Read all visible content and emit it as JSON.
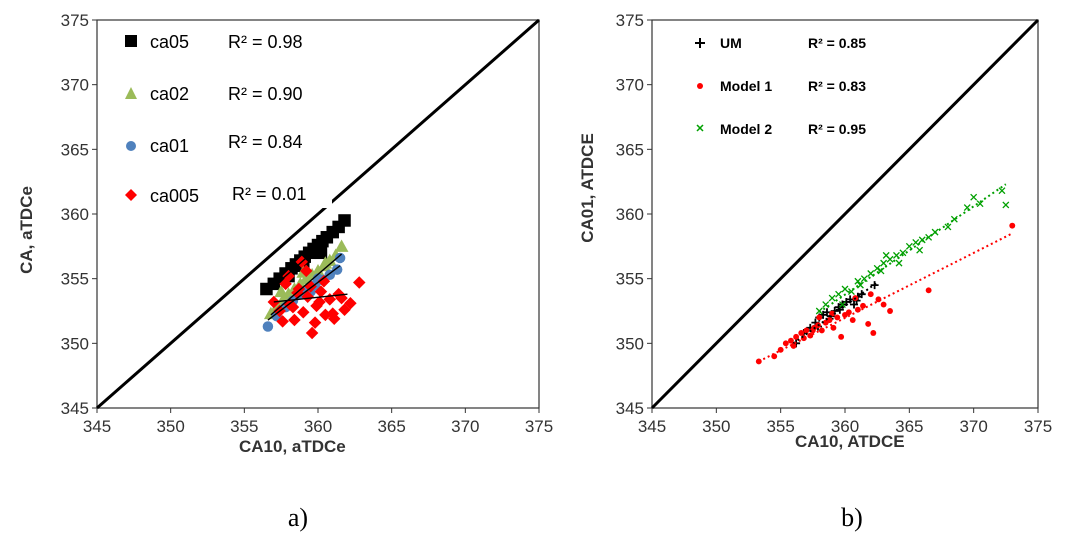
{
  "chart_data": [
    {
      "type": "scatter",
      "panel_label": "a)",
      "xlabel": "CA10,  aTDCe",
      "ylabel": "CA,  aTDCe",
      "xlim": [
        345,
        375
      ],
      "ylim": [
        345,
        375
      ],
      "xticks": [
        345,
        350,
        355,
        360,
        365,
        370,
        375
      ],
      "yticks": [
        345,
        350,
        355,
        360,
        365,
        370,
        375
      ],
      "tick_labels_x": [
        "345",
        "350",
        "355",
        "360",
        "365",
        "370",
        "375"
      ],
      "tick_labels_y": [
        "345",
        "350",
        "355",
        "360",
        "365",
        "370",
        "375"
      ],
      "grid": false,
      "legend_position": "top-left",
      "identity_line": true,
      "series": [
        {
          "name": "ca05",
          "marker": "square",
          "color": "#000000",
          "r2_label": "R² = 0.98",
          "x": [
            356.5,
            357.0,
            357.4,
            357.8,
            358.2,
            358.5,
            358.8,
            359.1,
            359.4,
            359.7,
            360.0,
            360.3,
            360.6,
            361.0,
            361.4,
            361.8,
            358.0,
            359.0,
            360.2
          ],
          "y": [
            354.2,
            354.6,
            355.0,
            355.4,
            355.8,
            356.1,
            356.4,
            356.7,
            357.0,
            357.3,
            357.6,
            357.9,
            358.2,
            358.6,
            359.0,
            359.5,
            355.2,
            356.0,
            357.0
          ]
        },
        {
          "name": "ca02",
          "marker": "triangle",
          "color": "#9BBB59",
          "r2_label": "R² = 0.90",
          "x": [
            356.8,
            357.2,
            357.6,
            358.0,
            358.4,
            358.8,
            359.2,
            359.6,
            360.0,
            360.4,
            360.8,
            361.2,
            361.6,
            357.5,
            359.0,
            360.5
          ],
          "y": [
            352.3,
            352.8,
            353.3,
            353.8,
            354.2,
            354.6,
            355.0,
            355.3,
            355.6,
            356.0,
            356.4,
            356.8,
            357.5,
            354.0,
            355.5,
            356.2
          ]
        },
        {
          "name": "ca01",
          "marker": "circle",
          "color": "#4F81BD",
          "r2_label": "R² = 0.84",
          "x": [
            356.6,
            357.2,
            357.8,
            358.3,
            358.8,
            359.3,
            359.8,
            360.3,
            360.8,
            361.3,
            361.5,
            358.0,
            359.5,
            360.0
          ],
          "y": [
            351.3,
            352.1,
            352.8,
            353.3,
            353.8,
            354.1,
            354.5,
            354.9,
            355.3,
            355.7,
            356.6,
            353.0,
            354.0,
            355.0
          ]
        },
        {
          "name": "ca005",
          "marker": "diamond",
          "color": "#FF0000",
          "r2_label": "R² = 0.01",
          "x": [
            357.0,
            357.4,
            357.8,
            358.1,
            358.4,
            358.7,
            359.0,
            359.3,
            359.6,
            359.9,
            360.2,
            360.5,
            360.8,
            361.1,
            361.4,
            361.8,
            362.2,
            362.8,
            358.0,
            358.6,
            359.2,
            359.8,
            360.4,
            361.0,
            357.6,
            358.9,
            360.1,
            361.6,
            359.5,
            358.3
          ],
          "y": [
            353.2,
            352.5,
            354.6,
            353.0,
            351.8,
            354.2,
            352.4,
            353.6,
            350.8,
            352.9,
            354.0,
            352.2,
            353.4,
            351.9,
            353.8,
            352.6,
            353.1,
            354.7,
            355.2,
            353.9,
            355.6,
            351.6,
            354.8,
            352.3,
            351.7,
            356.3,
            353.2,
            353.5,
            354.4,
            352.8
          ]
        }
      ],
      "trendlines": [
        {
          "series": "ca05",
          "x": [
            356.5,
            361.8
          ],
          "y": [
            353.9,
            359.2
          ]
        },
        {
          "series": "ca02",
          "x": [
            356.8,
            361.6
          ],
          "y": [
            352.2,
            356.9
          ]
        },
        {
          "series": "ca01",
          "x": [
            356.6,
            361.5
          ],
          "y": [
            351.8,
            356.0
          ]
        },
        {
          "series": "ca005",
          "x": [
            357.0,
            362.0
          ],
          "y": [
            353.2,
            353.8
          ]
        }
      ]
    },
    {
      "type": "scatter",
      "panel_label": "b)",
      "xlabel": "CA10,  ATDCE",
      "ylabel": "CA01,  ATDCE",
      "xlim": [
        345,
        375
      ],
      "ylim": [
        345,
        375
      ],
      "xticks": [
        345,
        350,
        355,
        360,
        365,
        370,
        375
      ],
      "yticks": [
        345,
        350,
        355,
        360,
        365,
        370,
        375
      ],
      "tick_labels_x": [
        "345",
        "350",
        "355",
        "360",
        "365",
        "370",
        "375"
      ],
      "tick_labels_y": [
        "345",
        "350",
        "355",
        "360",
        "365",
        "370",
        "375"
      ],
      "grid": false,
      "legend_position": "top-left",
      "identity_line": true,
      "series": [
        {
          "name": "UM",
          "marker": "plus",
          "color": "#000000",
          "r2_label": "R² = 0.85",
          "x": [
            356.2,
            356.8,
            357.3,
            357.7,
            358.0,
            358.3,
            358.6,
            358.9,
            359.2,
            359.5,
            359.8,
            360.1,
            360.4,
            360.7,
            361.0,
            361.3,
            362.3,
            357.9,
            358.8,
            359.6,
            360.9
          ],
          "y": [
            350.0,
            350.8,
            351.2,
            351.6,
            352.0,
            352.2,
            352.4,
            352.1,
            352.5,
            352.8,
            353.0,
            353.2,
            353.4,
            353.0,
            353.6,
            353.8,
            354.5,
            351.3,
            351.9,
            352.6,
            353.3
          ]
        },
        {
          "name": "Model 1",
          "marker": "circle",
          "color": "#FF0000",
          "r2_label": "R² = 0.83",
          "x": [
            353.3,
            354.5,
            355.0,
            355.4,
            355.8,
            356.2,
            356.6,
            357.0,
            357.3,
            357.6,
            357.9,
            358.2,
            358.5,
            358.8,
            359.1,
            359.4,
            359.7,
            360.0,
            360.3,
            360.6,
            361.0,
            361.4,
            361.8,
            362.2,
            362.6,
            363.0,
            363.5,
            366.5,
            373.0,
            356.0,
            357.5,
            359.0,
            360.8,
            362.0,
            358.0,
            356.8
          ],
          "y": [
            348.6,
            349.0,
            349.5,
            350.0,
            350.2,
            350.5,
            350.8,
            351.0,
            350.6,
            351.2,
            351.4,
            351.0,
            351.6,
            351.8,
            351.2,
            352.0,
            350.5,
            352.2,
            352.4,
            351.8,
            352.6,
            352.9,
            351.5,
            350.8,
            353.4,
            353.0,
            352.5,
            354.1,
            359.1,
            349.8,
            351.0,
            352.3,
            353.5,
            353.8,
            352.0,
            350.4
          ]
        },
        {
          "name": "Model 2",
          "marker": "x",
          "color": "#00A000",
          "r2_label": "R² = 0.95",
          "x": [
            358.0,
            358.5,
            359.0,
            359.5,
            360.0,
            360.5,
            361.0,
            361.5,
            362.0,
            362.5,
            363.0,
            363.5,
            364.0,
            364.5,
            365.0,
            365.5,
            366.0,
            366.5,
            367.0,
            368.0,
            368.5,
            369.5,
            370.0,
            370.5,
            372.2,
            372.5,
            359.8,
            361.2,
            362.8,
            364.2,
            365.8,
            363.2
          ],
          "y": [
            352.5,
            353.0,
            353.5,
            353.8,
            354.2,
            354.0,
            354.8,
            355.0,
            355.4,
            355.8,
            356.2,
            356.5,
            356.8,
            357.0,
            357.5,
            357.8,
            358.0,
            358.2,
            358.6,
            359.0,
            359.6,
            360.5,
            361.3,
            360.8,
            361.8,
            360.7,
            353.0,
            354.5,
            355.6,
            356.2,
            357.2,
            356.8
          ]
        }
      ],
      "trendlines": [
        {
          "series": "UM",
          "x": [
            356.0,
            362.5
          ],
          "y": [
            350.0,
            354.7
          ]
        },
        {
          "series": "Model 1",
          "x": [
            353.3,
            373.0
          ],
          "y": [
            348.6,
            358.5
          ]
        },
        {
          "series": "Model 2",
          "x": [
            358.0,
            372.5
          ],
          "y": [
            352.4,
            362.3
          ]
        }
      ]
    }
  ]
}
